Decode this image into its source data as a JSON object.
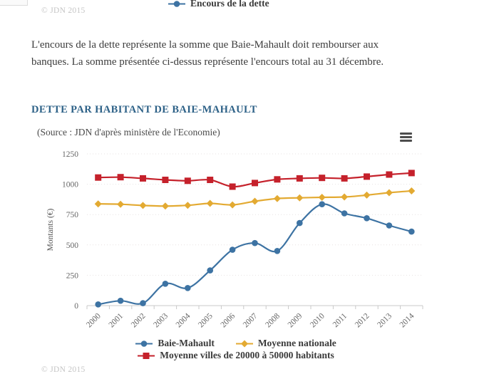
{
  "header": {
    "prev_chart_legend": {
      "label": "Encours de la dette",
      "color": "#3d73a3",
      "marker": "circle"
    },
    "copyright": "© JDN 2015"
  },
  "description": {
    "lines": [
      "L'encours de la dette représente la somme que Baie-Mahault doit rembourser aux",
      "banques. La somme présentée ci-dessus représente l'encours total au 31 décembre."
    ]
  },
  "section": {
    "title": "DETTE PAR HABITANT DE BAIE-MAHAULT",
    "source": "(Source : JDN d'après ministère de l'Economie)",
    "title_color": "#2d6187"
  },
  "export_menu": {
    "icon": "hamburger-menu-icon"
  },
  "chart_data": {
    "type": "line",
    "title": "DETTE PAR HABITANT DE BAIE-MAHAULT",
    "xlabel": "",
    "ylabel": "Montants (€)",
    "ylim": [
      0,
      1250
    ],
    "ytick_step": 250,
    "grid": true,
    "legend_position": "bottom",
    "categories": [
      "2000",
      "2001",
      "2002",
      "2003",
      "2004",
      "2005",
      "2006",
      "2007",
      "2008",
      "2009",
      "2010",
      "2011",
      "2012",
      "2013",
      "2014"
    ],
    "series": [
      {
        "name": "Baie-Mahault",
        "color": "#3d73a3",
        "marker": "circle",
        "values": [
          10,
          40,
          20,
          180,
          145,
          290,
          460,
          515,
          450,
          680,
          835,
          760,
          720,
          660,
          610
        ]
      },
      {
        "name": "Moyenne nationale",
        "color": "#e3aa32",
        "marker": "diamond",
        "values": [
          838,
          835,
          825,
          820,
          826,
          842,
          830,
          860,
          882,
          888,
          892,
          895,
          910,
          930,
          945
        ]
      },
      {
        "name": "Moyenne villes de 20000 à 50000 habitants",
        "color": "#c5212b",
        "marker": "square",
        "values": [
          1055,
          1058,
          1048,
          1036,
          1028,
          1036,
          980,
          1010,
          1040,
          1048,
          1052,
          1048,
          1063,
          1080,
          1092
        ]
      }
    ]
  },
  "footer": {
    "copyright": "© JDN 2015"
  }
}
